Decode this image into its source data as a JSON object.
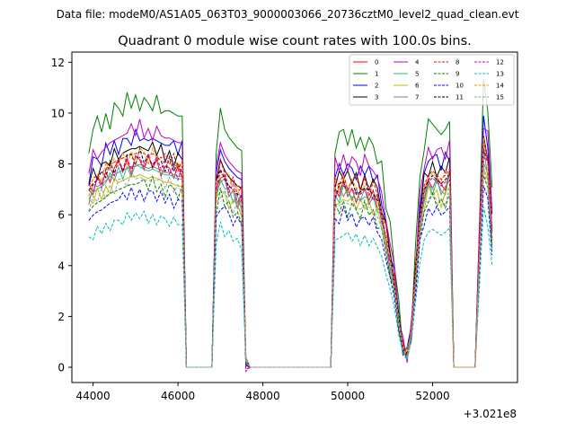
{
  "figure": {
    "suptitle": "Data file: modeM0/AS1A05_063T03_9000003066_20736cztM0_level2_quad_clean.evt"
  },
  "chart_data": {
    "type": "line",
    "title": "Quadrant 0 module wise count rates with 100.0s bins.",
    "xlabel": "",
    "ylabel": "",
    "x_offset_label": "+3.021e8",
    "xlim": [
      43500,
      54000
    ],
    "ylim": [
      -0.6,
      12.4
    ],
    "xticks": [
      44000,
      46000,
      48000,
      50000,
      52000
    ],
    "xtick_labels": [
      "44000",
      "46000",
      "48000",
      "50000",
      "52000"
    ],
    "yticks": [
      0,
      2,
      4,
      6,
      8,
      10,
      12
    ],
    "ytick_labels": [
      "0",
      "2",
      "4",
      "6",
      "8",
      "10",
      "12"
    ],
    "grid": false,
    "legend_position": "top-right",
    "legend_columns": 4,
    "x": [
      43900,
      44000,
      44100,
      44200,
      44300,
      44400,
      44500,
      44600,
      44700,
      44800,
      44900,
      45000,
      45100,
      45200,
      45300,
      45400,
      45500,
      45600,
      45700,
      45800,
      45900,
      46000,
      46100,
      46200,
      46300,
      46400,
      46500,
      46600,
      46700,
      46800,
      46900,
      47000,
      47100,
      47200,
      47300,
      47400,
      47500,
      47600,
      47700,
      47800,
      47900,
      48000,
      48100,
      48200,
      48300,
      48400,
      48500,
      48600,
      48700,
      48800,
      48900,
      49000,
      49100,
      49200,
      49300,
      49400,
      49500,
      49600,
      49700,
      49800,
      49900,
      50000,
      50100,
      50200,
      50300,
      50400,
      50500,
      50600,
      50700,
      50800,
      50900,
      51000,
      51100,
      51200,
      51300,
      51400,
      51500,
      51600,
      51700,
      51800,
      51900,
      52000,
      52100,
      52200,
      52300,
      52400,
      52500,
      52600,
      52700,
      52800,
      52900,
      53000,
      53100,
      53200,
      53300,
      53400
    ],
    "series": [
      {
        "name": "0",
        "color": "#ff0000",
        "style": "solid",
        "base": 8.0
      },
      {
        "name": "1",
        "color": "#008000",
        "style": "solid",
        "base": 10.4
      },
      {
        "name": "2",
        "color": "#0000ff",
        "style": "solid",
        "base": 9.0
      },
      {
        "name": "3",
        "color": "#000000",
        "style": "solid",
        "base": 8.6
      },
      {
        "name": "4",
        "color": "#bf00bf",
        "style": "solid",
        "base": 9.3
      },
      {
        "name": "5",
        "color": "#1fbf8f",
        "style": "solid",
        "base": 7.8
      },
      {
        "name": "6",
        "color": "#bfbf00",
        "style": "solid",
        "base": 7.5
      },
      {
        "name": "7",
        "color": "#808080",
        "style": "solid",
        "base": 7.9
      },
      {
        "name": "8",
        "color": "#ff0000",
        "style": "dashed",
        "base": 8.4
      },
      {
        "name": "9",
        "color": "#008000",
        "style": "dashed",
        "base": 7.2
      },
      {
        "name": "10",
        "color": "#0000ff",
        "style": "dashed",
        "base": 6.8
      },
      {
        "name": "11",
        "color": "#000000",
        "style": "dashed",
        "base": 8.2
      },
      {
        "name": "12",
        "color": "#bf00bf",
        "style": "dashed",
        "base": 8.1
      },
      {
        "name": "13",
        "color": "#00bfbf",
        "style": "dashed",
        "base": 5.9
      },
      {
        "name": "14",
        "color": "#ff8c00",
        "style": "dashed",
        "base": 8.3
      },
      {
        "name": "15",
        "color": "#a0a0a0",
        "style": "dashed",
        "base": 7.4
      }
    ],
    "profile": [
      0.85,
      0.88,
      0.9,
      0.91,
      0.93,
      0.95,
      0.96,
      0.97,
      0.98,
      0.99,
      1.0,
      1.0,
      1.01,
      1.0,
      0.99,
      1.0,
      0.99,
      0.98,
      0.97,
      0.97,
      0.96,
      0.95,
      0.95,
      0,
      0,
      0,
      0,
      0,
      0,
      0,
      0.85,
      0.95,
      0.9,
      0.87,
      0.85,
      0.83,
      0.82,
      0.01,
      0,
      0,
      0,
      0,
      0,
      0,
      0,
      0,
      0,
      0,
      0,
      0,
      0,
      0,
      0,
      0,
      0,
      0,
      0,
      0,
      0.85,
      0.86,
      0.88,
      0.87,
      0.86,
      0.85,
      0.84,
      0.86,
      0.85,
      0.83,
      0.8,
      0.74,
      0.62,
      0.52,
      0.4,
      0.22,
      0.09,
      0.05,
      0.18,
      0.44,
      0.7,
      0.85,
      0.9,
      0.92,
      0.9,
      0.88,
      0.9,
      0.93,
      0,
      0,
      0,
      0,
      0,
      0,
      0.55,
      1.05,
      0.98,
      0.65
    ],
    "jitter": [
      0.02,
      -0.03,
      0.04,
      -0.01,
      0.03,
      -0.04,
      0.02,
      0.05,
      -0.02,
      0.03,
      -0.05,
      0.04,
      0.01,
      -0.03,
      0.05,
      -0.02,
      0.03,
      -0.04,
      0.02,
      0.01,
      -0.03,
      0.04,
      -0.02,
      0,
      0,
      0,
      0,
      0,
      0,
      0,
      0.03,
      -0.02,
      0.04,
      -0.03,
      0.02,
      -0.04,
      0.03,
      0,
      0,
      0,
      0,
      0,
      0,
      0,
      0,
      0,
      0,
      0,
      0,
      0,
      0,
      0,
      0,
      0,
      0,
      0,
      0,
      0,
      0.03,
      -0.02,
      0.04,
      -0.03,
      0.02,
      -0.04,
      0.03,
      0.02,
      -0.03,
      0.04,
      -0.02,
      0.03,
      -0.04,
      0.02,
      0.01,
      -0.03,
      0.04,
      -0.02,
      0.03,
      -0.02,
      0.04,
      -0.03,
      0.02,
      -0.04,
      0.03,
      0.02,
      -0.03,
      0.04,
      0,
      0,
      0,
      0,
      0,
      0,
      0.03,
      -0.02,
      0.04,
      -0.03
    ]
  }
}
